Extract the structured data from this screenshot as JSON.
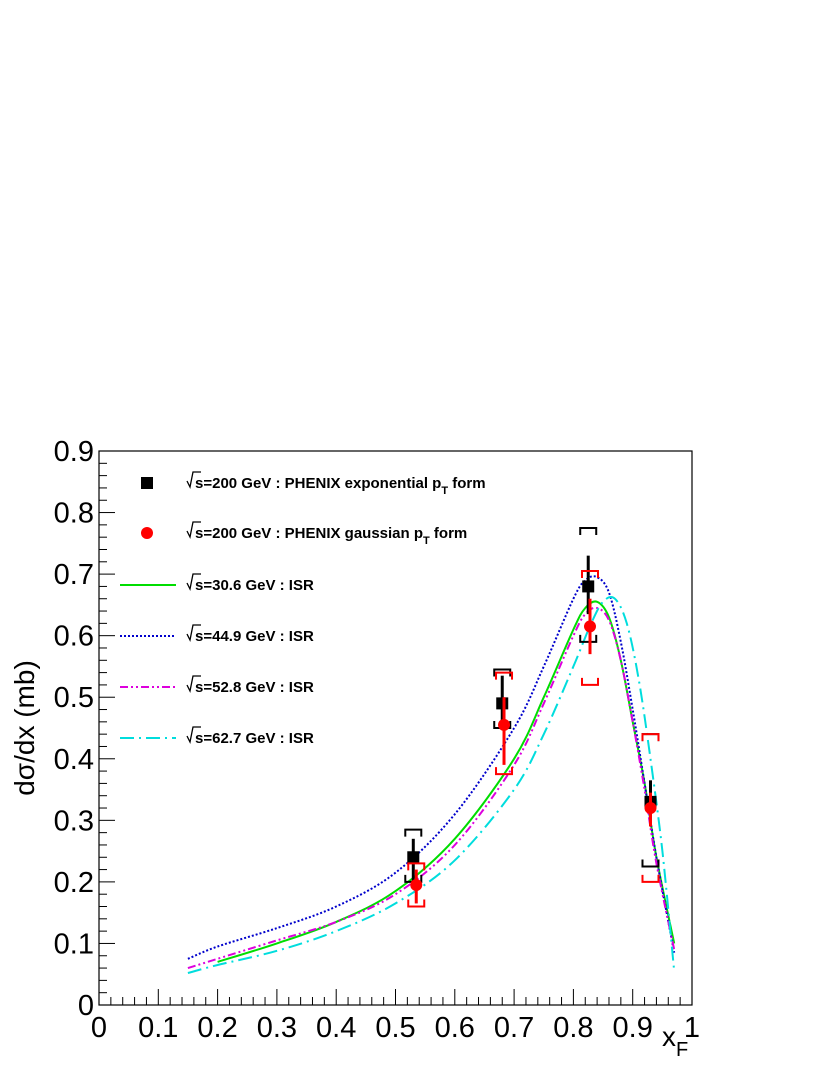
{
  "chart_data": {
    "type": "scatter",
    "xlabel": "x",
    "xlabel_sub": "F",
    "ylabel": "dσ/dx (mb)",
    "xlim": [
      0,
      1
    ],
    "ylim": [
      0,
      0.9
    ],
    "x_ticks": [
      0,
      0.1,
      0.2,
      0.3,
      0.4,
      0.5,
      0.6,
      0.7,
      0.8,
      0.9,
      1
    ],
    "x_tick_labels": [
      "0",
      "0.1",
      "0.2",
      "0.3",
      "0.4",
      "0.5",
      "0.6",
      "0.7",
      "0.8",
      "0.9",
      "1"
    ],
    "y_ticks": [
      0,
      0.1,
      0.2,
      0.3,
      0.4,
      0.5,
      0.6,
      0.7,
      0.8,
      0.9
    ],
    "y_tick_labels": [
      "0",
      "0.1",
      "0.2",
      "0.3",
      "0.4",
      "0.5",
      "0.6",
      "0.7",
      "0.8",
      "0.9"
    ],
    "grid": false,
    "legend_position": "top-left",
    "series": [
      {
        "name": "√s=200 GeV : PHENIX exponential pT form",
        "label_parts": [
          "s=200 GeV : PHENIX exponential p",
          "T",
          " form"
        ],
        "kind": "points",
        "marker": "square",
        "color": "#000000",
        "x": [
          0.53,
          0.68,
          0.825,
          0.93
        ],
        "y": [
          0.24,
          0.49,
          0.68,
          0.33
        ],
        "stat_low": [
          0.2,
          0.455,
          0.635,
          0.3
        ],
        "stat_high": [
          0.27,
          0.535,
          0.73,
          0.365
        ],
        "sys_low": [
          0.2,
          0.45,
          0.59,
          0.225
        ],
        "sys_high": [
          0.285,
          0.545,
          0.775,
          0.44
        ]
      },
      {
        "name": "√s=200 GeV : PHENIX gaussian pT form",
        "label_parts": [
          "s=200 GeV : PHENIX gaussian p",
          "T",
          " form"
        ],
        "kind": "points",
        "marker": "circle",
        "color": "#ff0000",
        "x": [
          0.535,
          0.683,
          0.828,
          0.93
        ],
        "y": [
          0.195,
          0.455,
          0.615,
          0.32
        ],
        "stat_low": [
          0.165,
          0.39,
          0.57,
          0.29
        ],
        "stat_high": [
          0.22,
          0.5,
          0.66,
          0.345
        ],
        "sys_low": [
          0.16,
          0.375,
          0.52,
          0.2
        ],
        "sys_high": [
          0.23,
          0.54,
          0.705,
          0.44
        ]
      },
      {
        "name": "√s=30.6 GeV : ISR",
        "label_parts": [
          "s=30.6 GeV : ISR"
        ],
        "kind": "line",
        "color": "#00dd00",
        "dash": "",
        "x": [
          0.2,
          0.3,
          0.4,
          0.5,
          0.6,
          0.7,
          0.75,
          0.8,
          0.82,
          0.84,
          0.86,
          0.88,
          0.9,
          0.92,
          0.94,
          0.97
        ],
        "y": [
          0.07,
          0.1,
          0.135,
          0.185,
          0.27,
          0.4,
          0.5,
          0.61,
          0.645,
          0.655,
          0.63,
          0.56,
          0.46,
          0.36,
          0.24,
          0.1
        ]
      },
      {
        "name": "√s=44.9 GeV : ISR",
        "label_parts": [
          "s=44.9 GeV : ISR"
        ],
        "kind": "line",
        "color": "#0000cc",
        "dash": "2,2",
        "x": [
          0.15,
          0.2,
          0.3,
          0.4,
          0.5,
          0.6,
          0.7,
          0.75,
          0.8,
          0.82,
          0.84,
          0.86,
          0.88,
          0.9,
          0.92,
          0.94,
          0.97
        ],
        "y": [
          0.075,
          0.095,
          0.125,
          0.16,
          0.215,
          0.31,
          0.45,
          0.55,
          0.66,
          0.69,
          0.695,
          0.67,
          0.59,
          0.48,
          0.36,
          0.24,
          0.085
        ]
      },
      {
        "name": "√s=52.8 GeV : ISR",
        "label_parts": [
          "s=52.8 GeV : ISR"
        ],
        "kind": "line",
        "color": "#dd00dd",
        "dash": "8,3,2,3,2,3",
        "x": [
          0.15,
          0.2,
          0.3,
          0.4,
          0.5,
          0.6,
          0.7,
          0.75,
          0.8,
          0.82,
          0.84,
          0.86,
          0.88,
          0.9,
          0.92,
          0.94,
          0.97
        ],
        "y": [
          0.06,
          0.075,
          0.105,
          0.135,
          0.18,
          0.26,
          0.39,
          0.49,
          0.6,
          0.635,
          0.645,
          0.625,
          0.56,
          0.46,
          0.35,
          0.23,
          0.09
        ]
      },
      {
        "name": "√s=62.7 GeV : ISR",
        "label_parts": [
          "s=62.7 GeV : ISR"
        ],
        "kind": "line",
        "color": "#00dddd",
        "dash": "14,5,2,5",
        "x": [
          0.15,
          0.2,
          0.3,
          0.4,
          0.5,
          0.6,
          0.7,
          0.75,
          0.8,
          0.83,
          0.85,
          0.87,
          0.89,
          0.91,
          0.93,
          0.95,
          0.97
        ],
        "y": [
          0.052,
          0.065,
          0.088,
          0.12,
          0.165,
          0.235,
          0.35,
          0.44,
          0.55,
          0.62,
          0.655,
          0.66,
          0.62,
          0.53,
          0.4,
          0.25,
          0.055
        ]
      }
    ]
  }
}
